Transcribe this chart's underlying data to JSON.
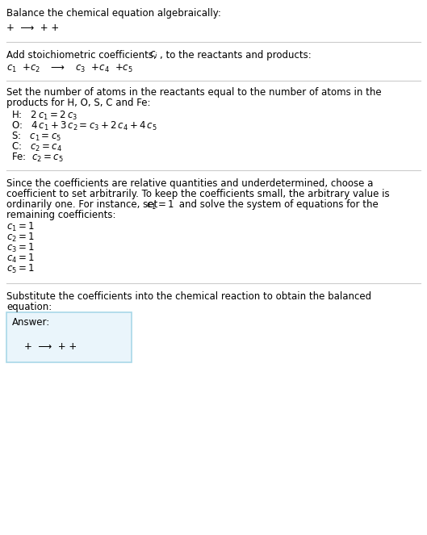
{
  "bg_color": "#ffffff",
  "text_color": "#000000",
  "line_color": "#cccccc",
  "box_border_color": "#a8d8e8",
  "box_bg_color": "#eaf5fb",
  "title": "Balance the chemical equation algebraically:",
  "line1": "+  ⟶  + +",
  "section2_title_a": "Add stoichiometric coefficients, ",
  "section2_title_b": ", to the reactants and products:",
  "section3_line1": "Set the number of atoms in the reactants equal to the number of atoms in the",
  "section3_line2": "products for H, O, S, C and Fe:",
  "section4_line1": "Since the coefficients are relative quantities and underdetermined, choose a",
  "section4_line2": "coefficient to set arbitrarily. To keep the coefficients small, the arbitrary value is",
  "section4_line3": "ordinarily one. For instance, set ",
  "section4_line4": "remaining coefficients:",
  "section5_line1": "Substitute the coefficients into the chemical reaction to obtain the balanced",
  "section5_line2": "equation:",
  "answer_label": "Answer:",
  "answer_line": "+  ⟶  + +",
  "fs": 8.5,
  "fs_math": 8.5
}
